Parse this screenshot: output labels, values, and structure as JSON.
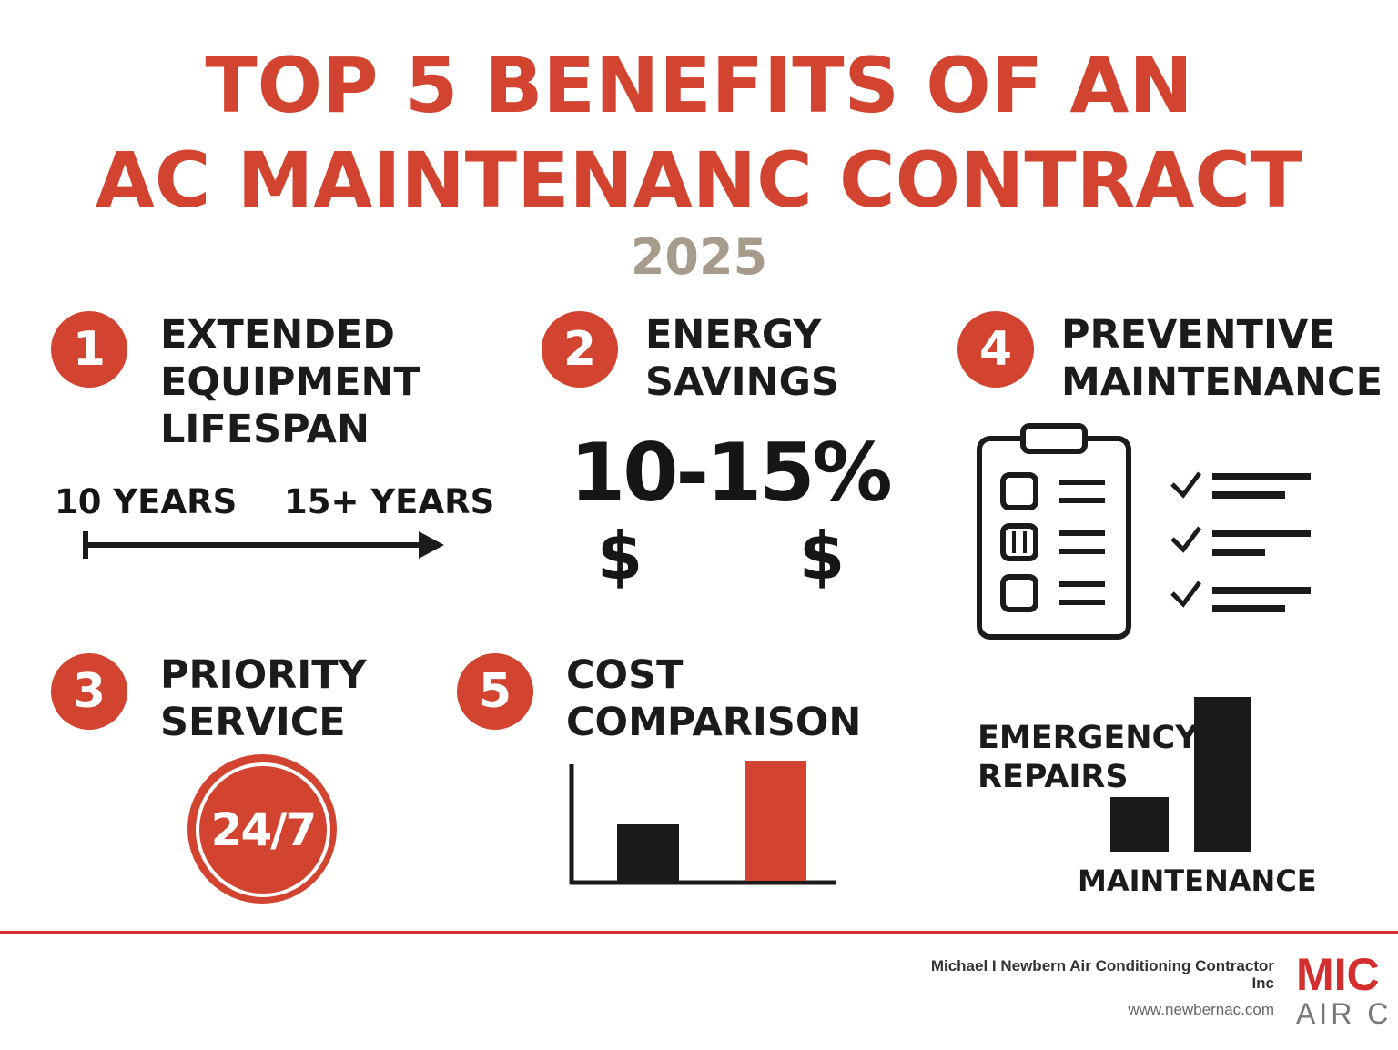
{
  "header": {
    "title_line1": "TOP 5 BENEFITS OF AN",
    "title_line2": "AC MAINTENANC CONTRACT",
    "year": "2025"
  },
  "benefits": [
    {
      "number": "1",
      "lines": [
        "EXTENDED",
        "EQUIPMENT",
        "LIFESPAN"
      ],
      "from_label": "10 YEARS",
      "to_label": "15+ YEARS"
    },
    {
      "number": "2",
      "lines": [
        "ENERGY",
        "SAVINGS"
      ],
      "value": "10-15%",
      "currency_symbol": "$"
    },
    {
      "number": "3",
      "lines": [
        "PRIORITY",
        "SERVICE"
      ],
      "badge": "24/7"
    },
    {
      "number": "4",
      "lines": [
        "PREVENTIVE",
        "MAINTENANCE"
      ],
      "icon": "clipboard-checklist-icon"
    },
    {
      "number": "5",
      "lines": [
        "COST",
        "COMPARISON"
      ],
      "chart_labels": [
        "EMERGENCY",
        "REPAIRS",
        "MAINTENANCE"
      ]
    }
  ],
  "footer": {
    "company_line1": "Michael I Newbern Air Conditioning Contractor",
    "company_line2": "Inc",
    "url": "www.newbernac.com",
    "logo_top": "MIC",
    "logo_bottom": "AIR C"
  },
  "colors": {
    "accent": "#d24430",
    "dark": "#1b1b1b",
    "year": "#a79c8c",
    "rule": "#d32f2f"
  }
}
